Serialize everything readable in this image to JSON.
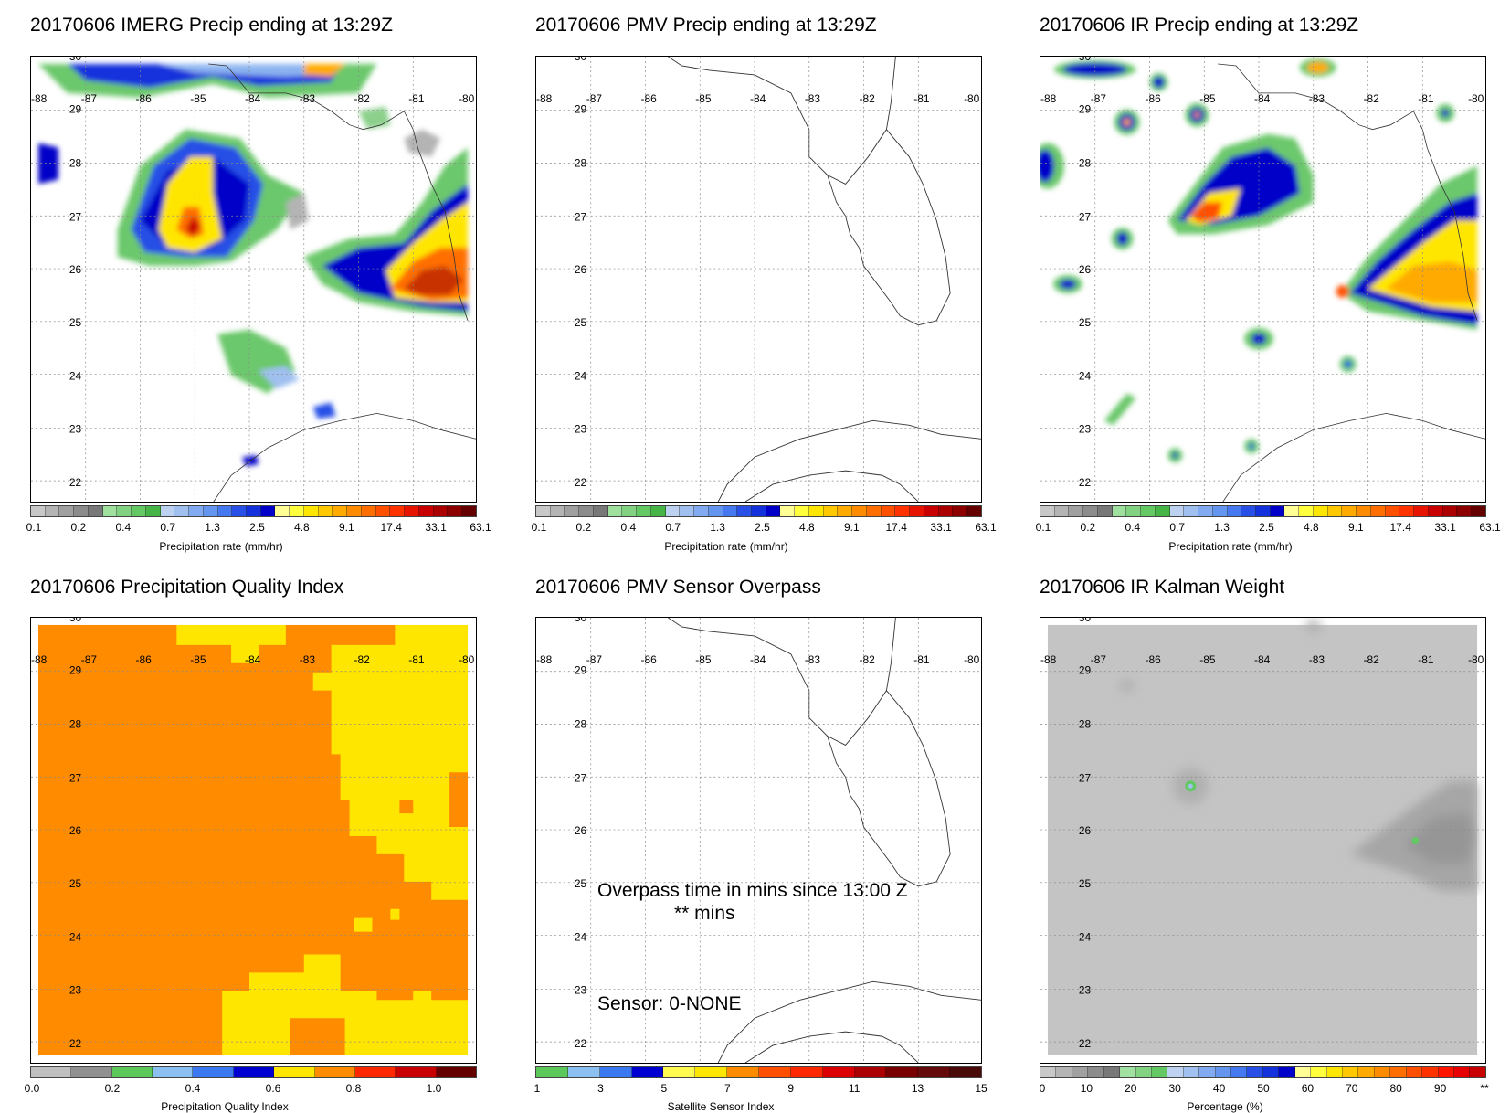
{
  "panels": {
    "imerg": {
      "title": "20170606 IMERG Precip ending at 13:29Z"
    },
    "pmv": {
      "title": "20170606 PMV Precip ending at 13:29Z"
    },
    "ir": {
      "title": "20170606 IR Precip ending at 13:29Z"
    },
    "pqi": {
      "title": "20170606 Precipitation Quality Index"
    },
    "overpass": {
      "title": "20170606 PMV Sensor Overpass",
      "line1": "Overpass time in mins since 13:00 Z",
      "line2": "** mins",
      "sensor": "Sensor:   0-NONE"
    },
    "kalman": {
      "title": "20170606 IR Kalman Weight"
    }
  },
  "axes": {
    "lon_labels": [
      "-88",
      "-87",
      "-86",
      "-85",
      "-84",
      "-83",
      "-82",
      "-81",
      "-80"
    ],
    "lat_labels": [
      "30",
      "29",
      "28",
      "27",
      "26",
      "25",
      "24",
      "23",
      "22"
    ]
  },
  "colorbars": {
    "precip": {
      "title": "Precipitation rate (mm/hr)",
      "ticks": [
        "0.1",
        "0.2",
        "0.4",
        "0.7",
        "1.3",
        "2.5",
        "4.8",
        "9.1",
        "17.4",
        "33.1",
        "63.1"
      ],
      "colors": [
        "#c8c8c8",
        "#b4b4b4",
        "#a0a0a0",
        "#8c8c8c",
        "#787878",
        "#9fe09f",
        "#82d282",
        "#64c864",
        "#46b446",
        "#bcd2f0",
        "#a0c0f0",
        "#82aaf0",
        "#6496f0",
        "#4678f0",
        "#2850e6",
        "#1432dc",
        "#0000c8",
        "#ffff96",
        "#ffff3c",
        "#ffe600",
        "#ffc800",
        "#ffaa00",
        "#ff8c00",
        "#ff6e00",
        "#ff5000",
        "#ff3200",
        "#e61400",
        "#c80000",
        "#aa0000",
        "#8c0000",
        "#640000"
      ]
    },
    "pqi": {
      "title": "Precipitation Quality Index",
      "ticks": [
        "0.0",
        "0.2",
        "0.4",
        "0.6",
        "0.8",
        "1.0"
      ],
      "colors": [
        "#c0c0c0",
        "#909090",
        "#5cc85c",
        "#8cc0f0",
        "#3c78f0",
        "#0000d0",
        "#ffe600",
        "#ff8c00",
        "#ff2800",
        "#c80000",
        "#640000"
      ]
    },
    "sensor": {
      "title": "Satellite Sensor Index",
      "ticks": [
        "1",
        "3",
        "5",
        "7",
        "9",
        "11",
        "13",
        "15"
      ],
      "colors": [
        "#5cc85c",
        "#8cc0f0",
        "#3c78f0",
        "#0000d0",
        "#fffa50",
        "#ffe600",
        "#ff8c00",
        "#ff5000",
        "#ff2800",
        "#dc0000",
        "#aa0000",
        "#780000",
        "#640a0a",
        "#4b0a0a"
      ]
    },
    "percent": {
      "title": "Percentage (%)",
      "ticks": [
        "0",
        "10",
        "20",
        "30",
        "40",
        "50",
        "60",
        "70",
        "80",
        "90",
        "**"
      ],
      "colors": [
        "#c8c8c8",
        "#b4b4b4",
        "#a0a0a0",
        "#8c8c8c",
        "#787878",
        "#a0e0a0",
        "#82d282",
        "#64c864",
        "#bcd2f0",
        "#a0c0f0",
        "#82aaf0",
        "#6496f0",
        "#4678f0",
        "#2850e6",
        "#1432dc",
        "#0000c8",
        "#ffff96",
        "#ffff3c",
        "#ffe600",
        "#ffc800",
        "#ffaa00",
        "#ff8c00",
        "#ff6e00",
        "#ff5000",
        "#ff3200",
        "#ff1400",
        "#e60000",
        "#c80000"
      ]
    }
  }
}
